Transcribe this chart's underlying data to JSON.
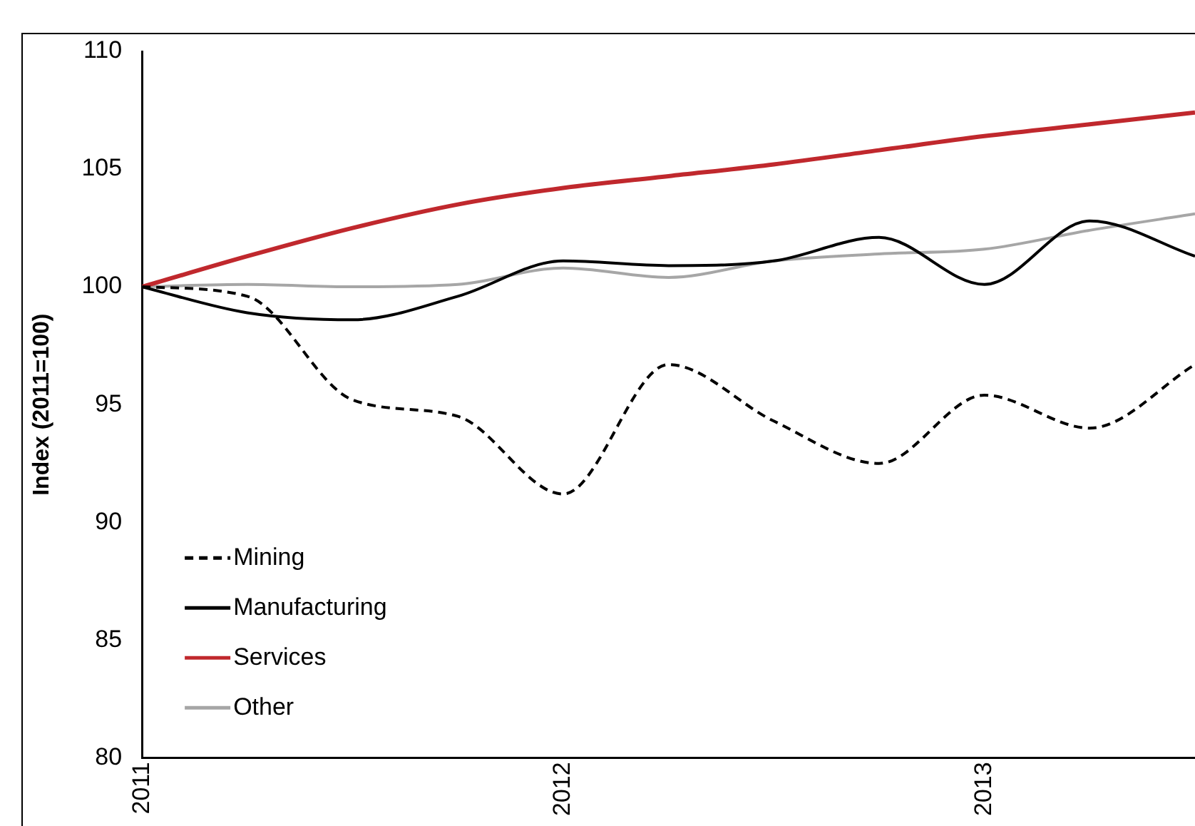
{
  "chart_data": {
    "type": "line",
    "ylabel": "Index (2011=100)",
    "x": [
      2011,
      2011.25,
      2011.5,
      2011.75,
      2012,
      2012.25,
      2012.5,
      2012.75,
      2013,
      2013.25,
      2013.5
    ],
    "series": [
      {
        "name": "Mining",
        "color": "#000000",
        "line_style": "dashed",
        "values": [
          100,
          99.6,
          95.2,
          94.5,
          91.2,
          96.7,
          94.3,
          92.5,
          95.4,
          94.0,
          96.7
        ]
      },
      {
        "name": "Manufacturing",
        "color": "#000000",
        "line_style": "solid",
        "values": [
          100,
          98.9,
          98.6,
          99.6,
          101.1,
          100.9,
          101.1,
          102.1,
          100.1,
          102.8,
          101.3
        ]
      },
      {
        "name": "Services",
        "color": "#c0282d",
        "line_style": "solid",
        "values": [
          100,
          101.3,
          102.5,
          103.5,
          104.2,
          104.7,
          105.2,
          105.8,
          106.4,
          106.9,
          107.4
        ]
      },
      {
        "name": "Other",
        "color": "#a6a6a6",
        "line_style": "solid",
        "values": [
          100,
          100.1,
          100,
          100.1,
          100.8,
          100.4,
          101.1,
          101.4,
          101.6,
          102.4,
          103.1
        ]
      }
    ],
    "xlim": [
      2011,
      2013.5
    ],
    "xticks": [
      2011,
      2012,
      2013
    ],
    "ylim": [
      80,
      110
    ],
    "yticks": [
      80,
      85,
      90,
      95,
      100,
      105,
      110
    ],
    "grid": false,
    "legend": "bottom left",
    "marker": "none"
  }
}
